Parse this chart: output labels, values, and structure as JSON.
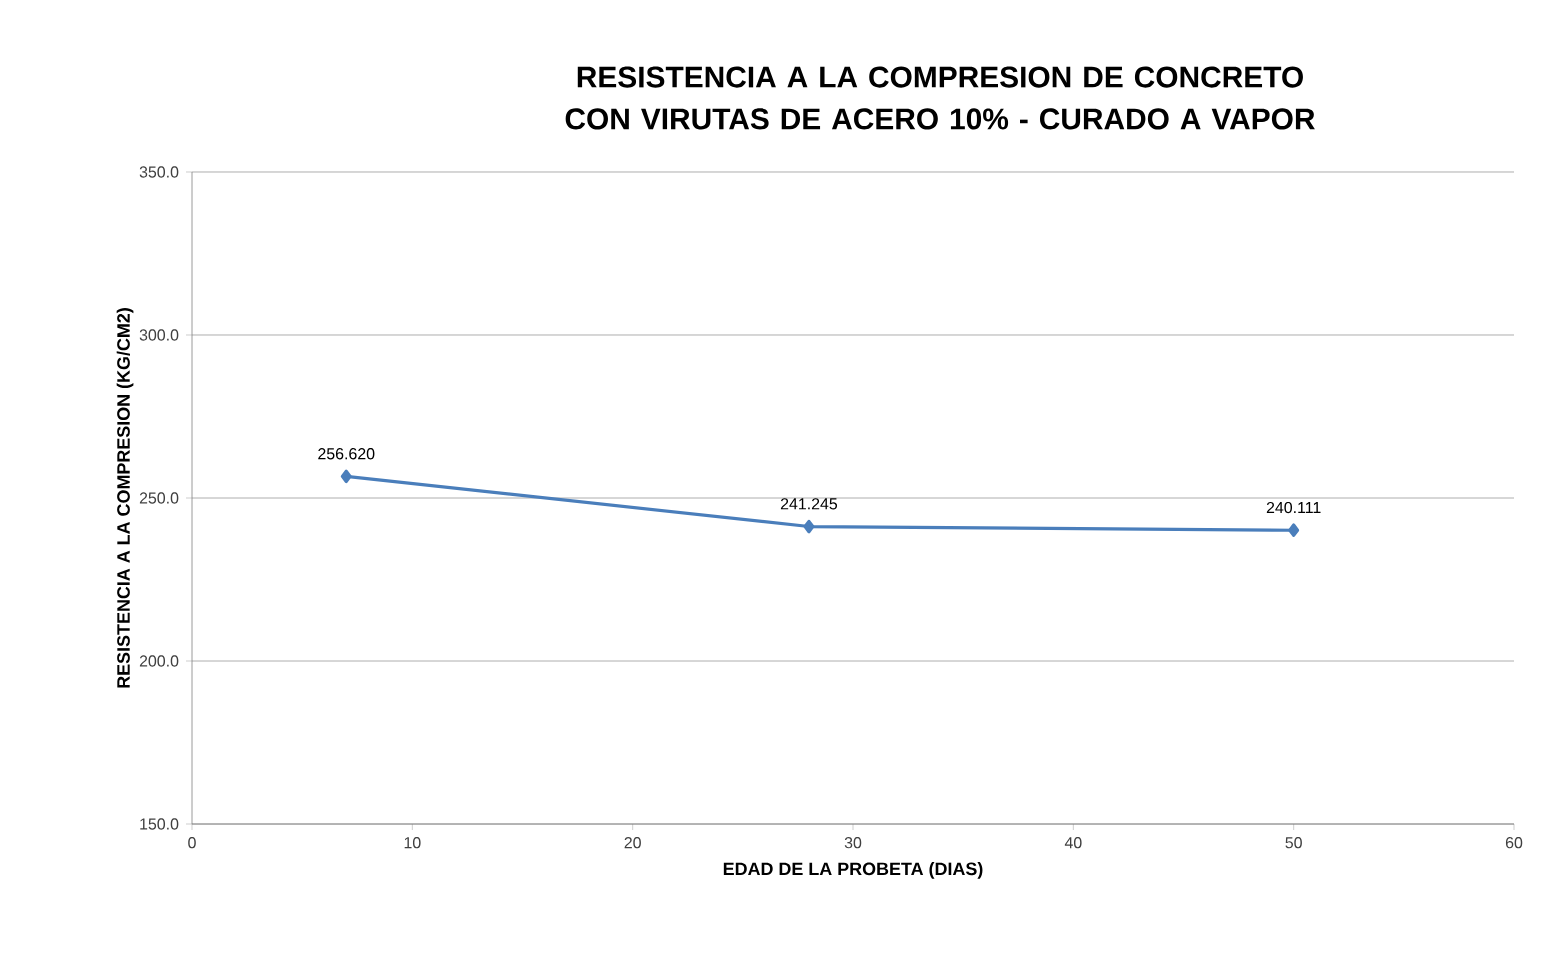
{
  "chart_data": {
    "type": "line",
    "title": "RESISTENCIA A LA COMPRESION DE CONCRETO CON VIRUTAS DE ACERO 10% - CURADO A VAPOR",
    "xlabel": "EDAD DE LA PROBETA (DIAS)",
    "ylabel": "RESISTENCIA A LA COMPRESION (KG/CM2)",
    "x": [
      7,
      28,
      50
    ],
    "series": [
      {
        "color": "#4a7ebb",
        "values": [
          256.62,
          241.245,
          240.111
        ],
        "value_labels": [
          "256.620",
          "241.245",
          "240.111"
        ]
      }
    ],
    "xlim": [
      0,
      60
    ],
    "xticks": [
      0,
      10,
      20,
      30,
      40,
      50,
      60
    ],
    "ylim": [
      150,
      350
    ],
    "yticks": [
      {
        "value": 150,
        "label": "150.0"
      },
      {
        "value": 200,
        "label": "200.0"
      },
      {
        "value": 250,
        "label": "250.0"
      },
      {
        "value": 300,
        "label": "300.0"
      },
      {
        "value": 350,
        "label": "350.0"
      }
    ],
    "grid": "y",
    "marker": "diamond",
    "line_style": "solid"
  }
}
